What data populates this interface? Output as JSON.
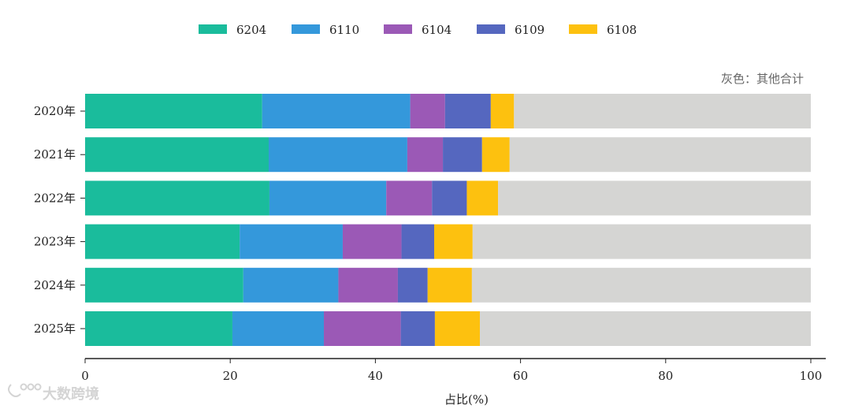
{
  "chart_data": {
    "type": "bar",
    "orientation": "horizontal",
    "stacked": true,
    "categories": [
      "2020年",
      "2021年",
      "2022年",
      "2023年",
      "2024年",
      "2025年"
    ],
    "series": [
      {
        "name": "6204",
        "color": "#1abc9c",
        "values": [
          24.4,
          25.3,
          25.4,
          21.3,
          21.8,
          20.3
        ]
      },
      {
        "name": "6110",
        "color": "#3498db",
        "values": [
          20.4,
          19.1,
          16.1,
          14.2,
          13.1,
          12.6
        ]
      },
      {
        "name": "6104",
        "color": "#9b59b6",
        "values": [
          4.8,
          4.9,
          6.3,
          8.1,
          8.2,
          10.6
        ]
      },
      {
        "name": "6109",
        "color": "#5567bf",
        "values": [
          6.3,
          5.4,
          4.8,
          4.5,
          4.1,
          4.7
        ]
      },
      {
        "name": "6108",
        "color": "#fdc10f",
        "values": [
          3.2,
          3.8,
          4.3,
          5.3,
          6.1,
          6.2
        ]
      }
    ],
    "remainder": {
      "color": "#d5d5d3",
      "total": 100
    },
    "annotation": "灰色：其他合计",
    "xlabel": "占比(%)",
    "xlim": [
      0,
      100
    ],
    "xticks": [
      0,
      20,
      40,
      60,
      80,
      100
    ],
    "legend_position": "top-center",
    "grid": false
  },
  "watermark": {
    "text": "大数跨境"
  }
}
